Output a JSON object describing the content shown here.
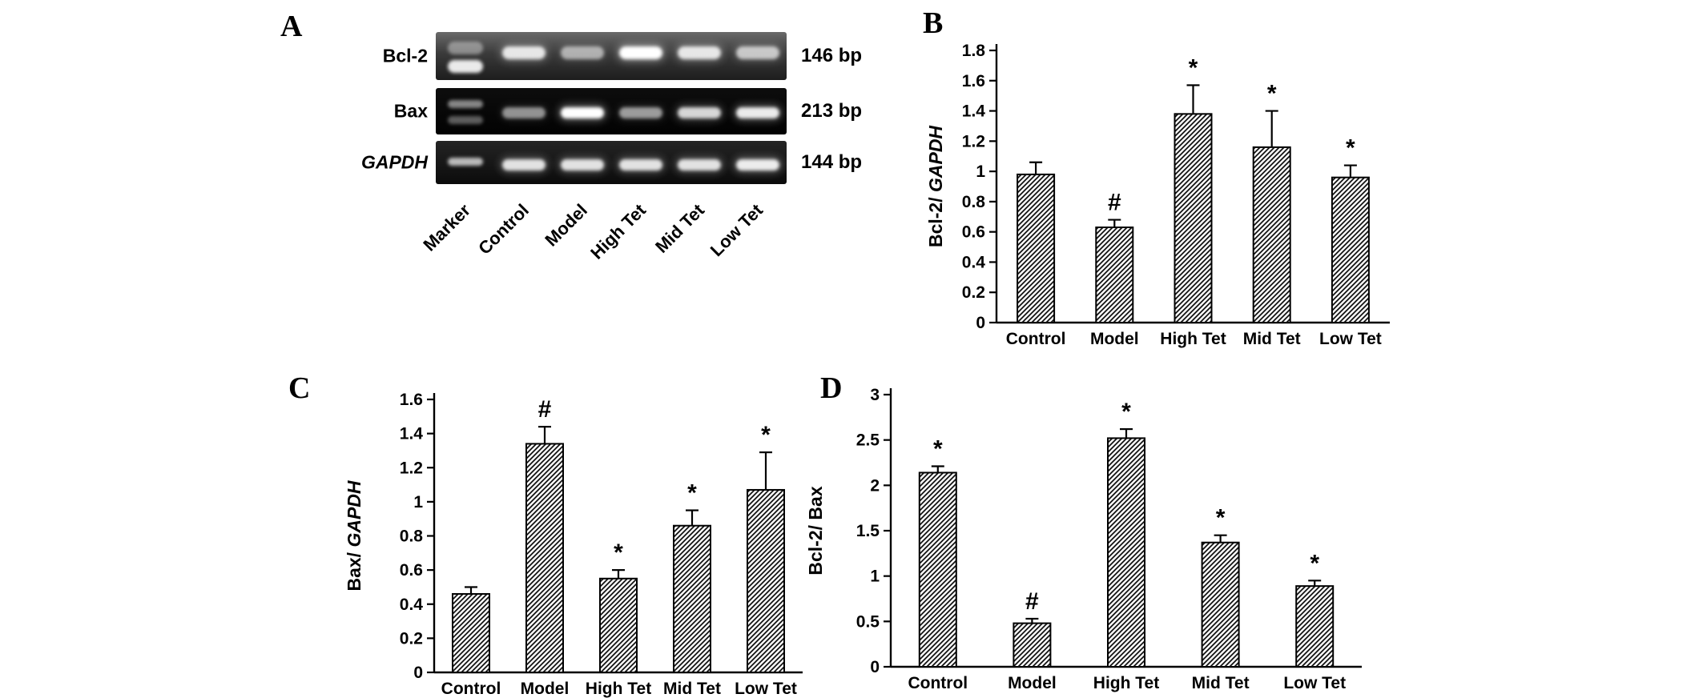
{
  "figure": {
    "background": "#ffffff",
    "bar_color": "#000000",
    "bar_fill": "diagonal-hatch-on-white"
  },
  "panels": {
    "a": {
      "label": "A"
    },
    "b": {
      "label": "B"
    },
    "c": {
      "label": "C"
    },
    "d": {
      "label": "D"
    }
  },
  "gel": {
    "lane_labels": [
      "Marker",
      "Control",
      "Model",
      "High Tet",
      "Mid Tet",
      "Low Tet"
    ],
    "rows": [
      {
        "name": "Bcl-2",
        "name_italic": false,
        "size_label": "146 bp",
        "band_intensities": [
          0.85,
          0.5,
          1.0,
          0.85,
          0.65
        ]
      },
      {
        "name": "Bax",
        "name_italic": false,
        "size_label": "213 bp",
        "band_intensities": [
          0.45,
          1.0,
          0.5,
          0.8,
          0.9
        ]
      },
      {
        "name": "GAPDH",
        "name_italic": true,
        "size_label": "144 bp",
        "band_intensities": [
          0.85,
          0.85,
          0.85,
          0.85,
          0.9
        ]
      }
    ]
  },
  "chart_data": [
    {
      "id": "chart-b",
      "panel": "B",
      "type": "bar",
      "categories": [
        "Control",
        "Model",
        "High Tet",
        "Mid Tet",
        "Low Tet"
      ],
      "values": [
        0.98,
        0.63,
        1.38,
        1.16,
        0.96
      ],
      "errors": [
        0.08,
        0.05,
        0.19,
        0.24,
        0.08
      ],
      "annotations": [
        "",
        "#",
        "*",
        "*",
        "*"
      ],
      "ylabel": "Bcl-2/",
      "ylabel_italic": " GAPDH",
      "xlabel": "",
      "ylim": [
        0,
        1.8
      ],
      "yticks": [
        0,
        0.2,
        0.4,
        0.6,
        0.8,
        1,
        1.2,
        1.4,
        1.6,
        1.8
      ],
      "ytick_labels": [
        "0",
        "0.2",
        "0.4",
        "0.6",
        "0.8",
        "1",
        "1.2",
        "1.4",
        "1.6",
        "1.8"
      ],
      "grid": false,
      "legend": null
    },
    {
      "id": "chart-c",
      "panel": "C",
      "type": "bar",
      "categories": [
        "Control",
        "Model",
        "High Tet",
        "Mid Tet",
        "Low Tet"
      ],
      "values": [
        0.46,
        1.34,
        0.55,
        0.86,
        1.07
      ],
      "errors": [
        0.04,
        0.1,
        0.05,
        0.09,
        0.22
      ],
      "annotations": [
        "",
        "#",
        "*",
        "*",
        "*"
      ],
      "ylabel": "Bax/",
      "ylabel_italic": " GAPDH",
      "xlabel": "",
      "ylim": [
        0,
        1.6
      ],
      "yticks": [
        0,
        0.2,
        0.4,
        0.6,
        0.8,
        1,
        1.2,
        1.4,
        1.6
      ],
      "ytick_labels": [
        "0",
        "0.2",
        "0.4",
        "0.6",
        "0.8",
        "1",
        "1.2",
        "1.4",
        "1.6"
      ],
      "grid": false,
      "legend": null
    },
    {
      "id": "chart-d",
      "panel": "D",
      "type": "bar",
      "categories": [
        "Control",
        "Model",
        "High Tet",
        "Mid Tet",
        "Low Tet"
      ],
      "values": [
        2.14,
        0.48,
        2.52,
        1.37,
        0.89
      ],
      "errors": [
        0.07,
        0.05,
        0.1,
        0.08,
        0.06
      ],
      "annotations": [
        "*",
        "#",
        "*",
        "*",
        "*"
      ],
      "ylabel": "Bcl-2/ Bax",
      "ylabel_italic": "",
      "xlabel": "",
      "ylim": [
        0,
        3
      ],
      "yticks": [
        0,
        0.5,
        1,
        1.5,
        2,
        2.5,
        3
      ],
      "ytick_labels": [
        "0",
        "0.5",
        "1",
        "1.5",
        "2",
        "2.5",
        "3"
      ],
      "grid": false,
      "legend": null
    }
  ]
}
